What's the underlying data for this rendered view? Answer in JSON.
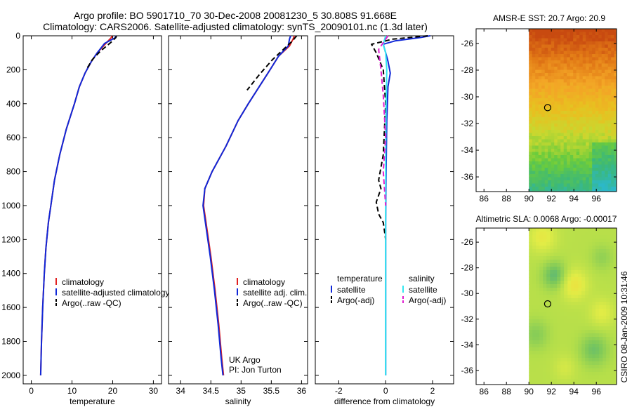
{
  "header": {
    "title_line1": "Argo profile: BO 5901710_70 30-Dec-2008 20081230_5 30.808S 91.668E",
    "title_line2": "Climatology: CARS2006. Satellite-adjusted climatology: synTS_20090101.nc (1.3d later)"
  },
  "side_label": "CSIRO 08-Jan-2009 10:31:46",
  "colors": {
    "climatology": "#e02020",
    "satellite": "#1028d8",
    "argo": "#000000",
    "sal_satellite": "#33e8f0",
    "sal_argo": "#e020d0"
  },
  "chart_data": [
    {
      "id": "temperature",
      "type": "line",
      "xlabel": "temperature",
      "ylabel": "",
      "xlim": [
        -2,
        32
      ],
      "ylim": [
        2050,
        0
      ],
      "xticks": [
        0,
        10,
        20,
        30
      ],
      "xtick_labels": [
        "0",
        "10",
        "20",
        "30"
      ],
      "yticks": [
        0,
        200,
        400,
        600,
        800,
        1000,
        1200,
        1400,
        1600,
        1800,
        2000
      ],
      "ytick_labels": [
        "0",
        "200",
        "400",
        "600",
        "800",
        "1000",
        "1200",
        "1400",
        "1600",
        "1800",
        "2000"
      ],
      "legend": {
        "placement": "lower-right",
        "entries": [
          {
            "label": "climatology",
            "color": "#e02020",
            "dash": "solid"
          },
          {
            "label": "satellite-adjusted climatology",
            "color": "#1028d8",
            "dash": "solid"
          },
          {
            "label": "Argo(..raw -QC)",
            "color": "#000000",
            "dash": "dashed"
          }
        ]
      },
      "series": [
        {
          "name": "climatology",
          "color": "#e02020",
          "dash": "solid",
          "x": [
            19.8,
            19.7,
            18.5,
            16.2,
            14.8,
            13.2,
            11.8,
            10.6,
            8.6,
            7.0,
            5.7,
            4.8,
            4.2,
            3.6,
            3.2,
            2.8,
            2.5,
            2.3
          ],
          "y": [
            0,
            10,
            40,
            100,
            150,
            220,
            300,
            400,
            550,
            700,
            850,
            1000,
            1100,
            1250,
            1400,
            1600,
            1800,
            2000
          ]
        },
        {
          "name": "satellite-adjusted climatology",
          "color": "#1028d8",
          "dash": "solid",
          "x": [
            20.8,
            20.6,
            18.0,
            16.2,
            14.8,
            13.2,
            11.8,
            10.6,
            8.6,
            7.0,
            5.7,
            4.8,
            4.2,
            3.6,
            3.2,
            2.8,
            2.5,
            2.3
          ],
          "y": [
            0,
            12,
            45,
            100,
            150,
            220,
            300,
            400,
            550,
            700,
            850,
            1000,
            1100,
            1250,
            1400,
            1600,
            1800,
            2000
          ]
        },
        {
          "name": "Argo(..raw -QC)",
          "color": "#000000",
          "dash": "dashed",
          "x": [
            20.9,
            20.8,
            19.5,
            17.0,
            15.0,
            13.5
          ],
          "y": [
            0,
            10,
            40,
            90,
            140,
            200
          ]
        }
      ]
    },
    {
      "id": "salinity",
      "type": "line",
      "xlabel": "salinity",
      "ylabel": "",
      "xlim": [
        33.8,
        36.1
      ],
      "ylim": [
        2050,
        0
      ],
      "xticks": [
        34,
        34.5,
        35,
        35.5,
        36
      ],
      "xtick_labels": [
        "34",
        "34.5",
        "35",
        "35.5",
        "36"
      ],
      "legend": {
        "placement": "lower-right",
        "entries": [
          {
            "label": "climatology",
            "color": "#e02020",
            "dash": "solid"
          },
          {
            "label": "satellite adj. clim.",
            "color": "#1028d8",
            "dash": "solid"
          },
          {
            "label": "Argo(..raw -QC)",
            "color": "#000000",
            "dash": "dashed"
          }
        ]
      },
      "annotations": [
        "UK Argo",
        "PI: Jon Turton"
      ],
      "series": [
        {
          "name": "climatology",
          "color": "#e02020",
          "dash": "solid",
          "x": [
            35.88,
            35.86,
            35.8,
            35.62,
            35.48,
            35.3,
            35.12,
            34.95,
            34.75,
            34.52,
            34.4,
            34.38,
            34.42,
            34.5,
            34.57,
            34.63,
            34.68,
            34.71
          ],
          "y": [
            0,
            20,
            60,
            120,
            200,
            300,
            400,
            500,
            650,
            800,
            900,
            1000,
            1100,
            1300,
            1500,
            1700,
            1900,
            2000
          ]
        },
        {
          "name": "satellite adj. clim.",
          "color": "#1028d8",
          "dash": "solid",
          "x": [
            35.82,
            35.8,
            35.78,
            35.62,
            35.48,
            35.3,
            35.12,
            34.95,
            34.75,
            34.52,
            34.4,
            34.37,
            34.41,
            34.49,
            34.56,
            34.62,
            34.67,
            34.7
          ],
          "y": [
            0,
            20,
            60,
            120,
            200,
            300,
            400,
            500,
            650,
            800,
            900,
            1000,
            1100,
            1300,
            1500,
            1700,
            1900,
            2000
          ]
        },
        {
          "name": "Argo(..raw -QC)",
          "color": "#000000",
          "dash": "dashed",
          "x": [
            35.92,
            35.85,
            35.7,
            35.52,
            35.3,
            35.1
          ],
          "y": [
            0,
            30,
            80,
            140,
            230,
            320
          ]
        }
      ]
    },
    {
      "id": "difference",
      "type": "line",
      "xlabel": "difference from climatology",
      "ylabel": "",
      "xlim": [
        -3,
        2.9
      ],
      "ylim": [
        2050,
        0
      ],
      "xticks": [
        -2,
        0,
        2
      ],
      "xtick_labels": [
        "-2",
        "0",
        "2"
      ],
      "legend": {
        "placement": "lower-center",
        "headings": [
          "temperature",
          "salinity"
        ],
        "entries": [
          {
            "label": "satellite",
            "color": "#1028d8",
            "dash": "solid",
            "group": "temperature"
          },
          {
            "label": "Argo(-adj)",
            "color": "#000000",
            "dash": "dashed",
            "group": "temperature"
          },
          {
            "label": "satellite",
            "color": "#33e8f0",
            "dash": "solid",
            "group": "salinity"
          },
          {
            "label": "Argo(-adj)",
            "color": "#e020d0",
            "dash": "dashed",
            "group": "salinity"
          }
        ]
      },
      "series": [
        {
          "name": "temperature satellite",
          "color": "#1028d8",
          "dash": "solid",
          "x": [
            1.9,
            1.5,
            0.4,
            -0.1,
            0.0,
            0.1,
            0.2,
            0.1,
            0.05,
            0.02,
            0.0,
            0.0,
            0.0,
            0.0
          ],
          "y": [
            0,
            10,
            30,
            50,
            100,
            150,
            220,
            300,
            500,
            800,
            1100,
            1400,
            1700,
            2000
          ]
        },
        {
          "name": "temperature Argo(-adj)",
          "color": "#000000",
          "dash": "dashed",
          "x": [
            1.8,
            0.3,
            -0.6,
            -0.4,
            -0.1,
            0.0,
            -0.1,
            -0.3,
            -0.2,
            -0.4,
            -0.3,
            -0.1,
            0.0
          ],
          "y": [
            0,
            20,
            50,
            100,
            200,
            400,
            700,
            850,
            900,
            980,
            1050,
            1100,
            1200
          ]
        },
        {
          "name": "salinity satellite",
          "color": "#33e8f0",
          "dash": "solid",
          "x": [
            0.0,
            -0.1,
            0.0,
            0.05,
            0.02,
            0.0,
            0.0,
            0.0,
            0.0,
            0.0
          ],
          "y": [
            0,
            50,
            100,
            200,
            400,
            700,
            1000,
            1400,
            1700,
            2000
          ]
        },
        {
          "name": "salinity Argo(-adj)",
          "color": "#e020d0",
          "dash": "dashed",
          "x": [
            0.1,
            -0.3,
            -0.2,
            -0.1,
            0.0,
            -0.1,
            -0.05,
            0.0
          ],
          "y": [
            0,
            80,
            200,
            350,
            600,
            800,
            900,
            1000
          ]
        }
      ]
    },
    {
      "id": "sst-map",
      "type": "heatmap",
      "title": "AMSR-E SST: 20.7 Argo: 20.9",
      "xlim": [
        85.3,
        97.8
      ],
      "ylim": [
        -37.1,
        -24.9
      ],
      "xticks": [
        86,
        88,
        90,
        92,
        94,
        96
      ],
      "xtick_labels": [
        "86",
        "88",
        "90",
        "92",
        "94",
        "96"
      ],
      "yticks": [
        -26,
        -28,
        -30,
        -32,
        -34,
        -36
      ],
      "ytick_labels": [
        "-26",
        "-28",
        "-30",
        "-32",
        "-34",
        "-36"
      ],
      "data_lon_min": 90,
      "marker": {
        "lon": 91.668,
        "lat": -30.808
      },
      "palette": [
        "#c84a10",
        "#e27a16",
        "#f3a526",
        "#e8c020",
        "#c8d830",
        "#6ccc3c",
        "#3cb878",
        "#2cb8c8"
      ]
    },
    {
      "id": "sla-map",
      "type": "heatmap",
      "title": "Altimetric SLA: 0.0068 Argo: -0.00017",
      "xlim": [
        85.3,
        97.8
      ],
      "ylim": [
        -37.1,
        -24.9
      ],
      "xticks": [
        86,
        88,
        90,
        92,
        94,
        96
      ],
      "xtick_labels": [
        "86",
        "88",
        "90",
        "92",
        "94",
        "96"
      ],
      "yticks": [
        -26,
        -28,
        -30,
        -32,
        -34,
        -36
      ],
      "ytick_labels": [
        "-26",
        "-28",
        "-30",
        "-32",
        "-34",
        "-36"
      ],
      "data_lon_min": 90,
      "marker": {
        "lon": 91.668,
        "lat": -30.808
      },
      "palette": [
        "#40a890",
        "#7cc85a",
        "#b4de4a",
        "#e2ec46",
        "#f4d83a",
        "#f0b03a"
      ]
    }
  ]
}
